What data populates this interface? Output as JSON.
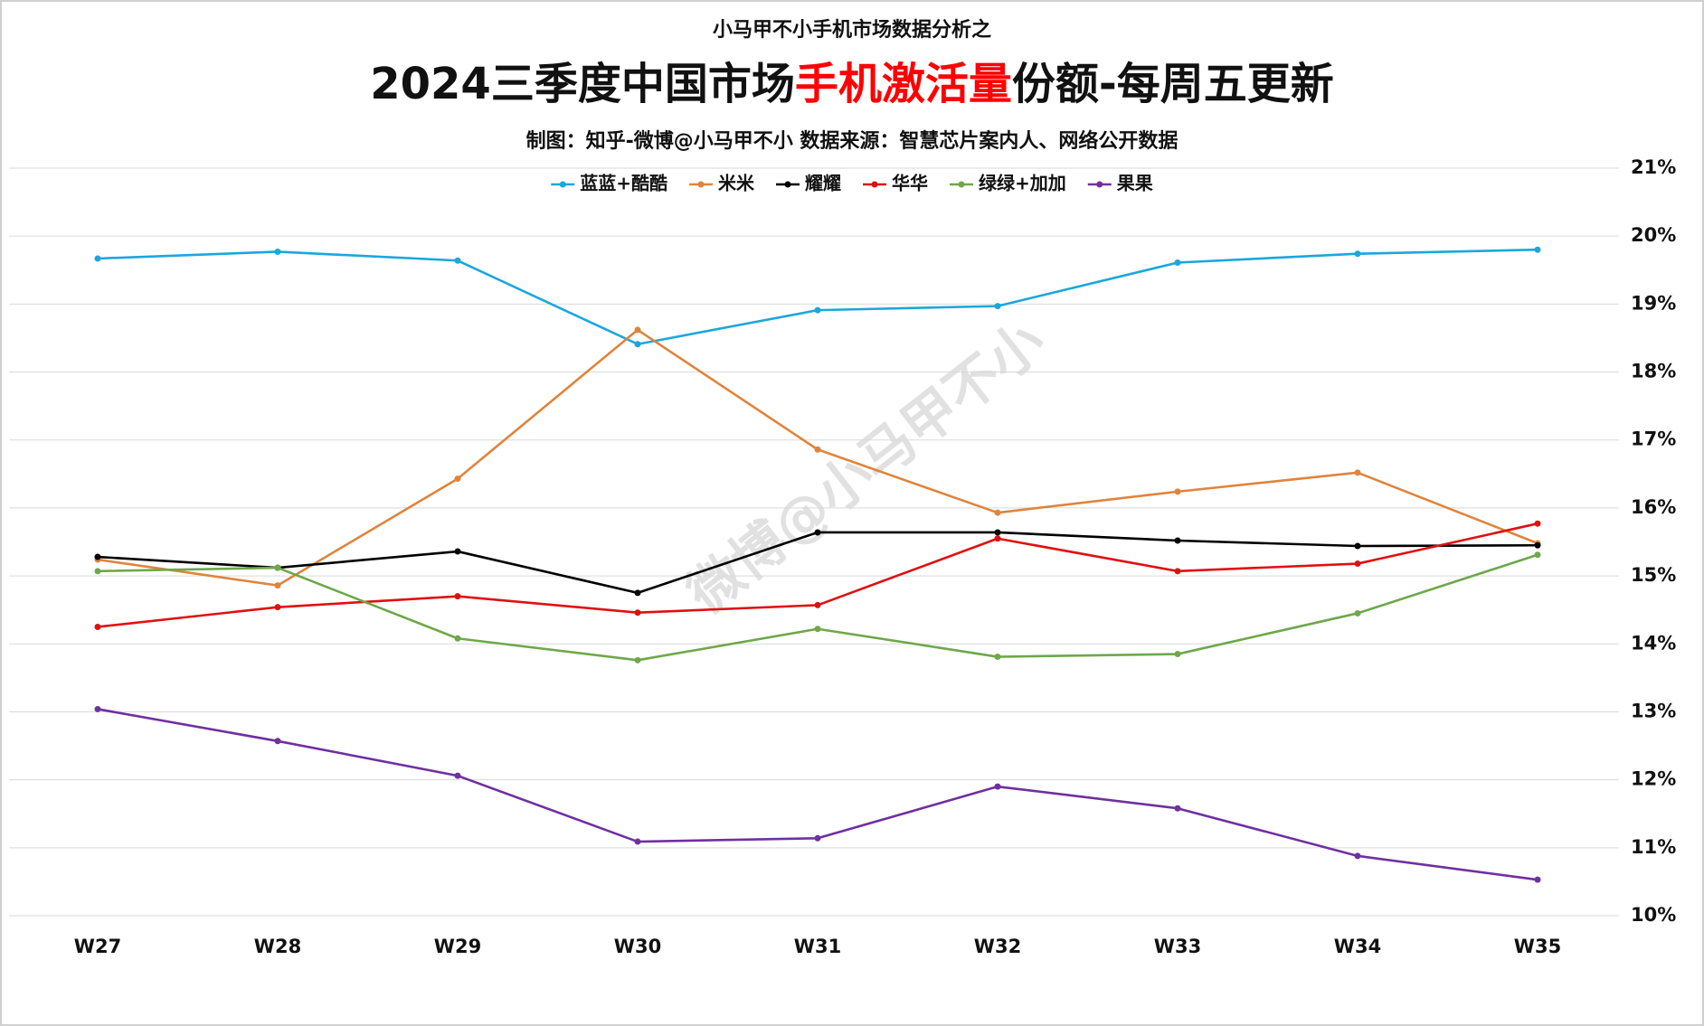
{
  "chart_data": {
    "type": "line",
    "pretitle": "小马甲不小手机市场数据分析之",
    "title": {
      "before": "2024三季度中国市场",
      "highlight": "手机激活量",
      "after": "份额-每周五更新",
      "highlight_color": "#ff0000"
    },
    "subtitle": "制图：知乎-微博@小马甲不小   数据来源：智慧芯片案内人、网络公开数据",
    "watermark": "微博@小马甲不小",
    "categories": [
      "W27",
      "W28",
      "W29",
      "W30",
      "W31",
      "W32",
      "W33",
      "W34",
      "W35"
    ],
    "series": [
      {
        "name": "蓝蓝+酷酷",
        "color": "#1ba7dc",
        "values": [
          19.67,
          19.77,
          19.64,
          18.41,
          18.91,
          18.97,
          19.61,
          19.74,
          19.8
        ]
      },
      {
        "name": "米米",
        "color": "#e0843c",
        "values": [
          15.24,
          14.86,
          16.43,
          18.62,
          16.86,
          15.93,
          16.24,
          16.52,
          15.48
        ]
      },
      {
        "name": "耀耀",
        "color": "#000000",
        "values": [
          15.28,
          15.12,
          15.36,
          14.75,
          15.64,
          15.64,
          15.52,
          15.44,
          15.45
        ]
      },
      {
        "name": "华华",
        "color": "#e01010",
        "values": [
          14.25,
          14.54,
          14.7,
          14.46,
          14.57,
          15.55,
          15.07,
          15.18,
          15.77
        ]
      },
      {
        "name": "绿绿+加加",
        "color": "#6ea84a",
        "values": [
          15.07,
          15.12,
          14.08,
          13.76,
          14.22,
          13.81,
          13.85,
          14.45,
          15.31
        ]
      },
      {
        "name": "果果",
        "color": "#7030a0",
        "values": [
          13.04,
          12.57,
          12.06,
          11.09,
          11.14,
          11.9,
          11.58,
          10.88,
          10.53
        ]
      }
    ],
    "ylim": [
      10,
      21
    ],
    "yticks": [
      {
        "value": 10,
        "label": "10%"
      },
      {
        "value": 11,
        "label": "11%"
      },
      {
        "value": 12,
        "label": "12%"
      },
      {
        "value": 13,
        "label": "13%"
      },
      {
        "value": 14,
        "label": "14%"
      },
      {
        "value": 15,
        "label": "15%"
      },
      {
        "value": 16,
        "label": "16%"
      },
      {
        "value": 17,
        "label": "17%"
      },
      {
        "value": 18,
        "label": "18%"
      },
      {
        "value": 19,
        "label": "19%"
      },
      {
        "value": 20,
        "label": "20%"
      },
      {
        "value": 21,
        "label": "21%"
      }
    ],
    "grid": true,
    "legend": "top"
  }
}
